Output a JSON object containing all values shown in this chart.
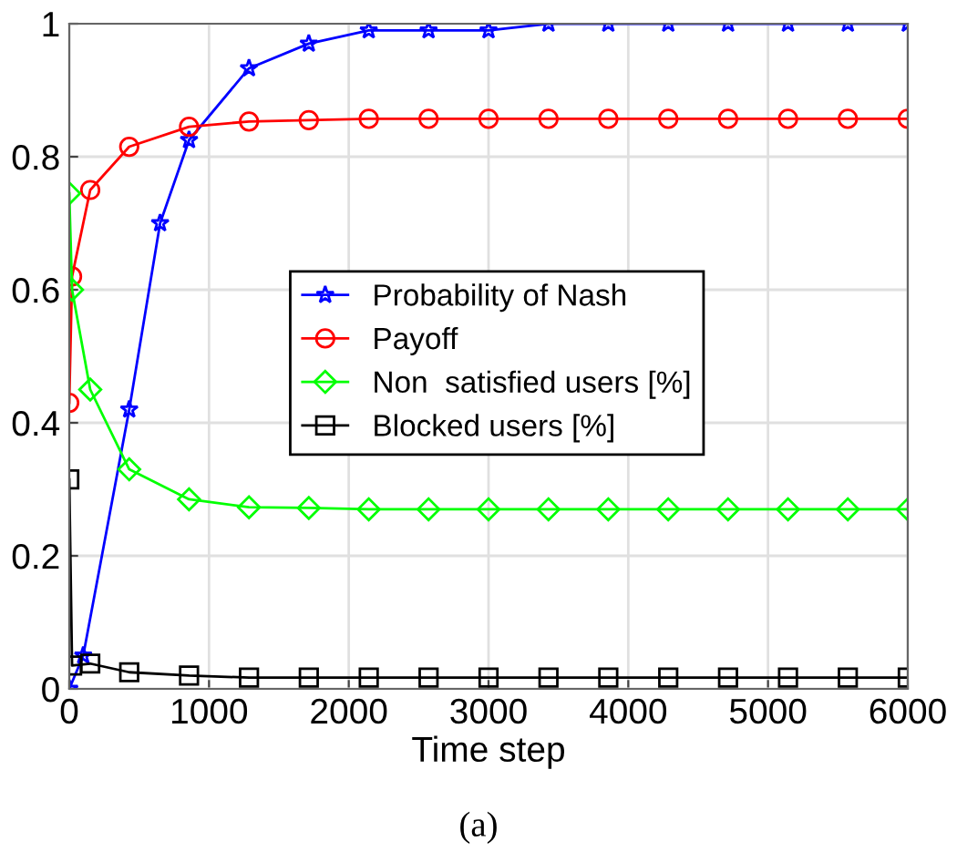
{
  "chart_data": {
    "type": "line",
    "xlabel": "Time step",
    "annotations": [
      "(a)"
    ],
    "xlim": [
      0,
      6000
    ],
    "ylim": [
      0,
      1
    ],
    "xticks": [
      0,
      1000,
      2000,
      3000,
      4000,
      5000,
      6000
    ],
    "yticks": [
      0,
      0.2,
      0.4,
      0.6,
      0.8,
      1
    ],
    "grid": true,
    "legend": "center",
    "series": [
      {
        "name": "Probability of Nash",
        "color": "#0000ff",
        "marker": "star",
        "x": [
          0,
          100,
          429,
          650,
          857,
          1286,
          1714,
          2143,
          2571,
          3000,
          3429,
          3857,
          4286,
          4714,
          5143,
          5571,
          6000
        ],
        "values": [
          0,
          0.05,
          0.42,
          0.7,
          0.825,
          0.933,
          0.97,
          0.99,
          0.99,
          0.99,
          1,
          1,
          1,
          1,
          1,
          1,
          1
        ]
      },
      {
        "name": "Payoff",
        "color": "#ff0000",
        "marker": "circle",
        "x": [
          0,
          20,
          150,
          429,
          857,
          1286,
          1714,
          2143,
          2571,
          3000,
          3429,
          3857,
          4286,
          4714,
          5143,
          5571,
          6000
        ],
        "values": [
          0.43,
          0.62,
          0.75,
          0.815,
          0.845,
          0.853,
          0.855,
          0.857,
          0.857,
          0.857,
          0.857,
          0.857,
          0.857,
          0.857,
          0.857,
          0.857,
          0.857
        ]
      },
      {
        "name": "Non  satisfied users [%]",
        "color": "#00ff00",
        "marker": "diamond",
        "x": [
          0,
          20,
          150,
          429,
          857,
          1286,
          1714,
          2143,
          2571,
          3000,
          3429,
          3857,
          4286,
          4714,
          5143,
          5571,
          6000
        ],
        "values": [
          0.745,
          0.6,
          0.45,
          0.33,
          0.285,
          0.273,
          0.272,
          0.27,
          0.27,
          0.27,
          0.27,
          0.27,
          0.27,
          0.27,
          0.27,
          0.27,
          0.27
        ]
      },
      {
        "name": "Blocked users [%]",
        "color": "#000000",
        "marker": "square",
        "x": [
          0,
          20,
          150,
          429,
          857,
          1286,
          1714,
          2143,
          2571,
          3000,
          3429,
          3857,
          4286,
          4714,
          5143,
          5571,
          6000
        ],
        "values": [
          0.315,
          0.035,
          0.038,
          0.025,
          0.02,
          0.017,
          0.017,
          0.017,
          0.017,
          0.017,
          0.017,
          0.017,
          0.017,
          0.017,
          0.017,
          0.017,
          0.017
        ]
      }
    ]
  }
}
